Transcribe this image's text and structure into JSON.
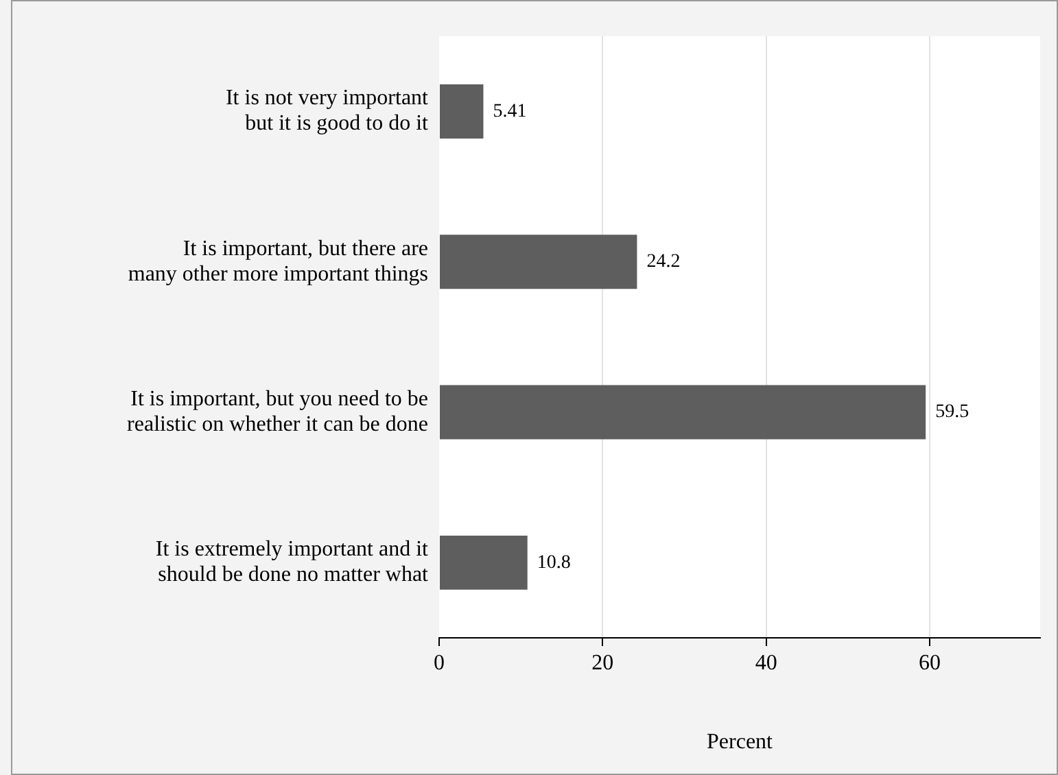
{
  "chart_data": {
    "type": "bar",
    "orientation": "horizontal",
    "xlabel": "Percent",
    "categories": [
      "It is not very important\nbut it is good to do it",
      "It is important, but there are\nmany other more important things",
      "It is important, but you need to be\nrealistic on whether it can be done",
      "It is extremely important and it\nshould be done no matter what"
    ],
    "values": [
      5.41,
      24.2,
      59.5,
      10.8
    ],
    "color": "#5e5e5e",
    "xlim": [
      0,
      73.5
    ],
    "xticks": [
      0,
      20,
      40,
      60
    ],
    "grid": "x",
    "data_labels": true,
    "legend": false
  }
}
